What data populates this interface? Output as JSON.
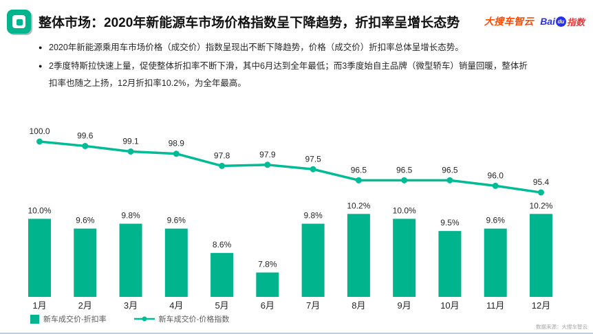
{
  "header": {
    "title": "整体市场：2020年新能源车市场价格指数呈下降趋势，折扣率呈增长态势",
    "logo_dasouche": "大搜车智云",
    "baidu": {
      "bai": "Bai",
      "du": "du",
      "suffix": "指数"
    }
  },
  "bullets": [
    "2020年新能源乘用车市场价格（成交价）指数呈现出不断下降趋势，价格（成交价）折扣率总体呈增长态势。",
    "2季度特斯拉快速上量，促使整体折扣率不断下滑，其中6月达到全年最低；而3季度始自主品牌（微型轿车）销量回暖，整体折扣率也随之上扬，12月折扣率10.2%，为全年最高。"
  ],
  "chart_data": {
    "type": "combo",
    "title": "",
    "xlabel": "",
    "ylabel": "",
    "categories": [
      "1月",
      "2月",
      "3月",
      "4月",
      "5月",
      "6月",
      "7月",
      "8月",
      "9月",
      "10月",
      "11月",
      "12月"
    ],
    "series": [
      {
        "name": "新车成交价-折扣率",
        "type": "bar",
        "unit": "%",
        "values": [
          10.0,
          9.6,
          9.8,
          9.6,
          8.6,
          7.8,
          9.8,
          10.2,
          10.0,
          9.5,
          9.6,
          10.2
        ]
      },
      {
        "name": "新车成交价-价格指数",
        "type": "line",
        "unit": "",
        "values": [
          100.0,
          99.6,
          99.1,
          98.9,
          97.8,
          97.9,
          97.5,
          96.5,
          96.5,
          96.5,
          96.0,
          95.4
        ]
      }
    ],
    "data_labels": true,
    "gridlines": false,
    "axes_visible": false,
    "legend_position": "bottom-left"
  },
  "footer": {
    "source": "数据来源：大搜车智云"
  },
  "colors": {
    "accent": "#00B48E",
    "line": "#00BC96",
    "dasouche_orange": "#FF4A00",
    "baidu_blue": "#2932E1",
    "baidu_red": "#E4393C",
    "footer_line": "#BCCFE0"
  }
}
